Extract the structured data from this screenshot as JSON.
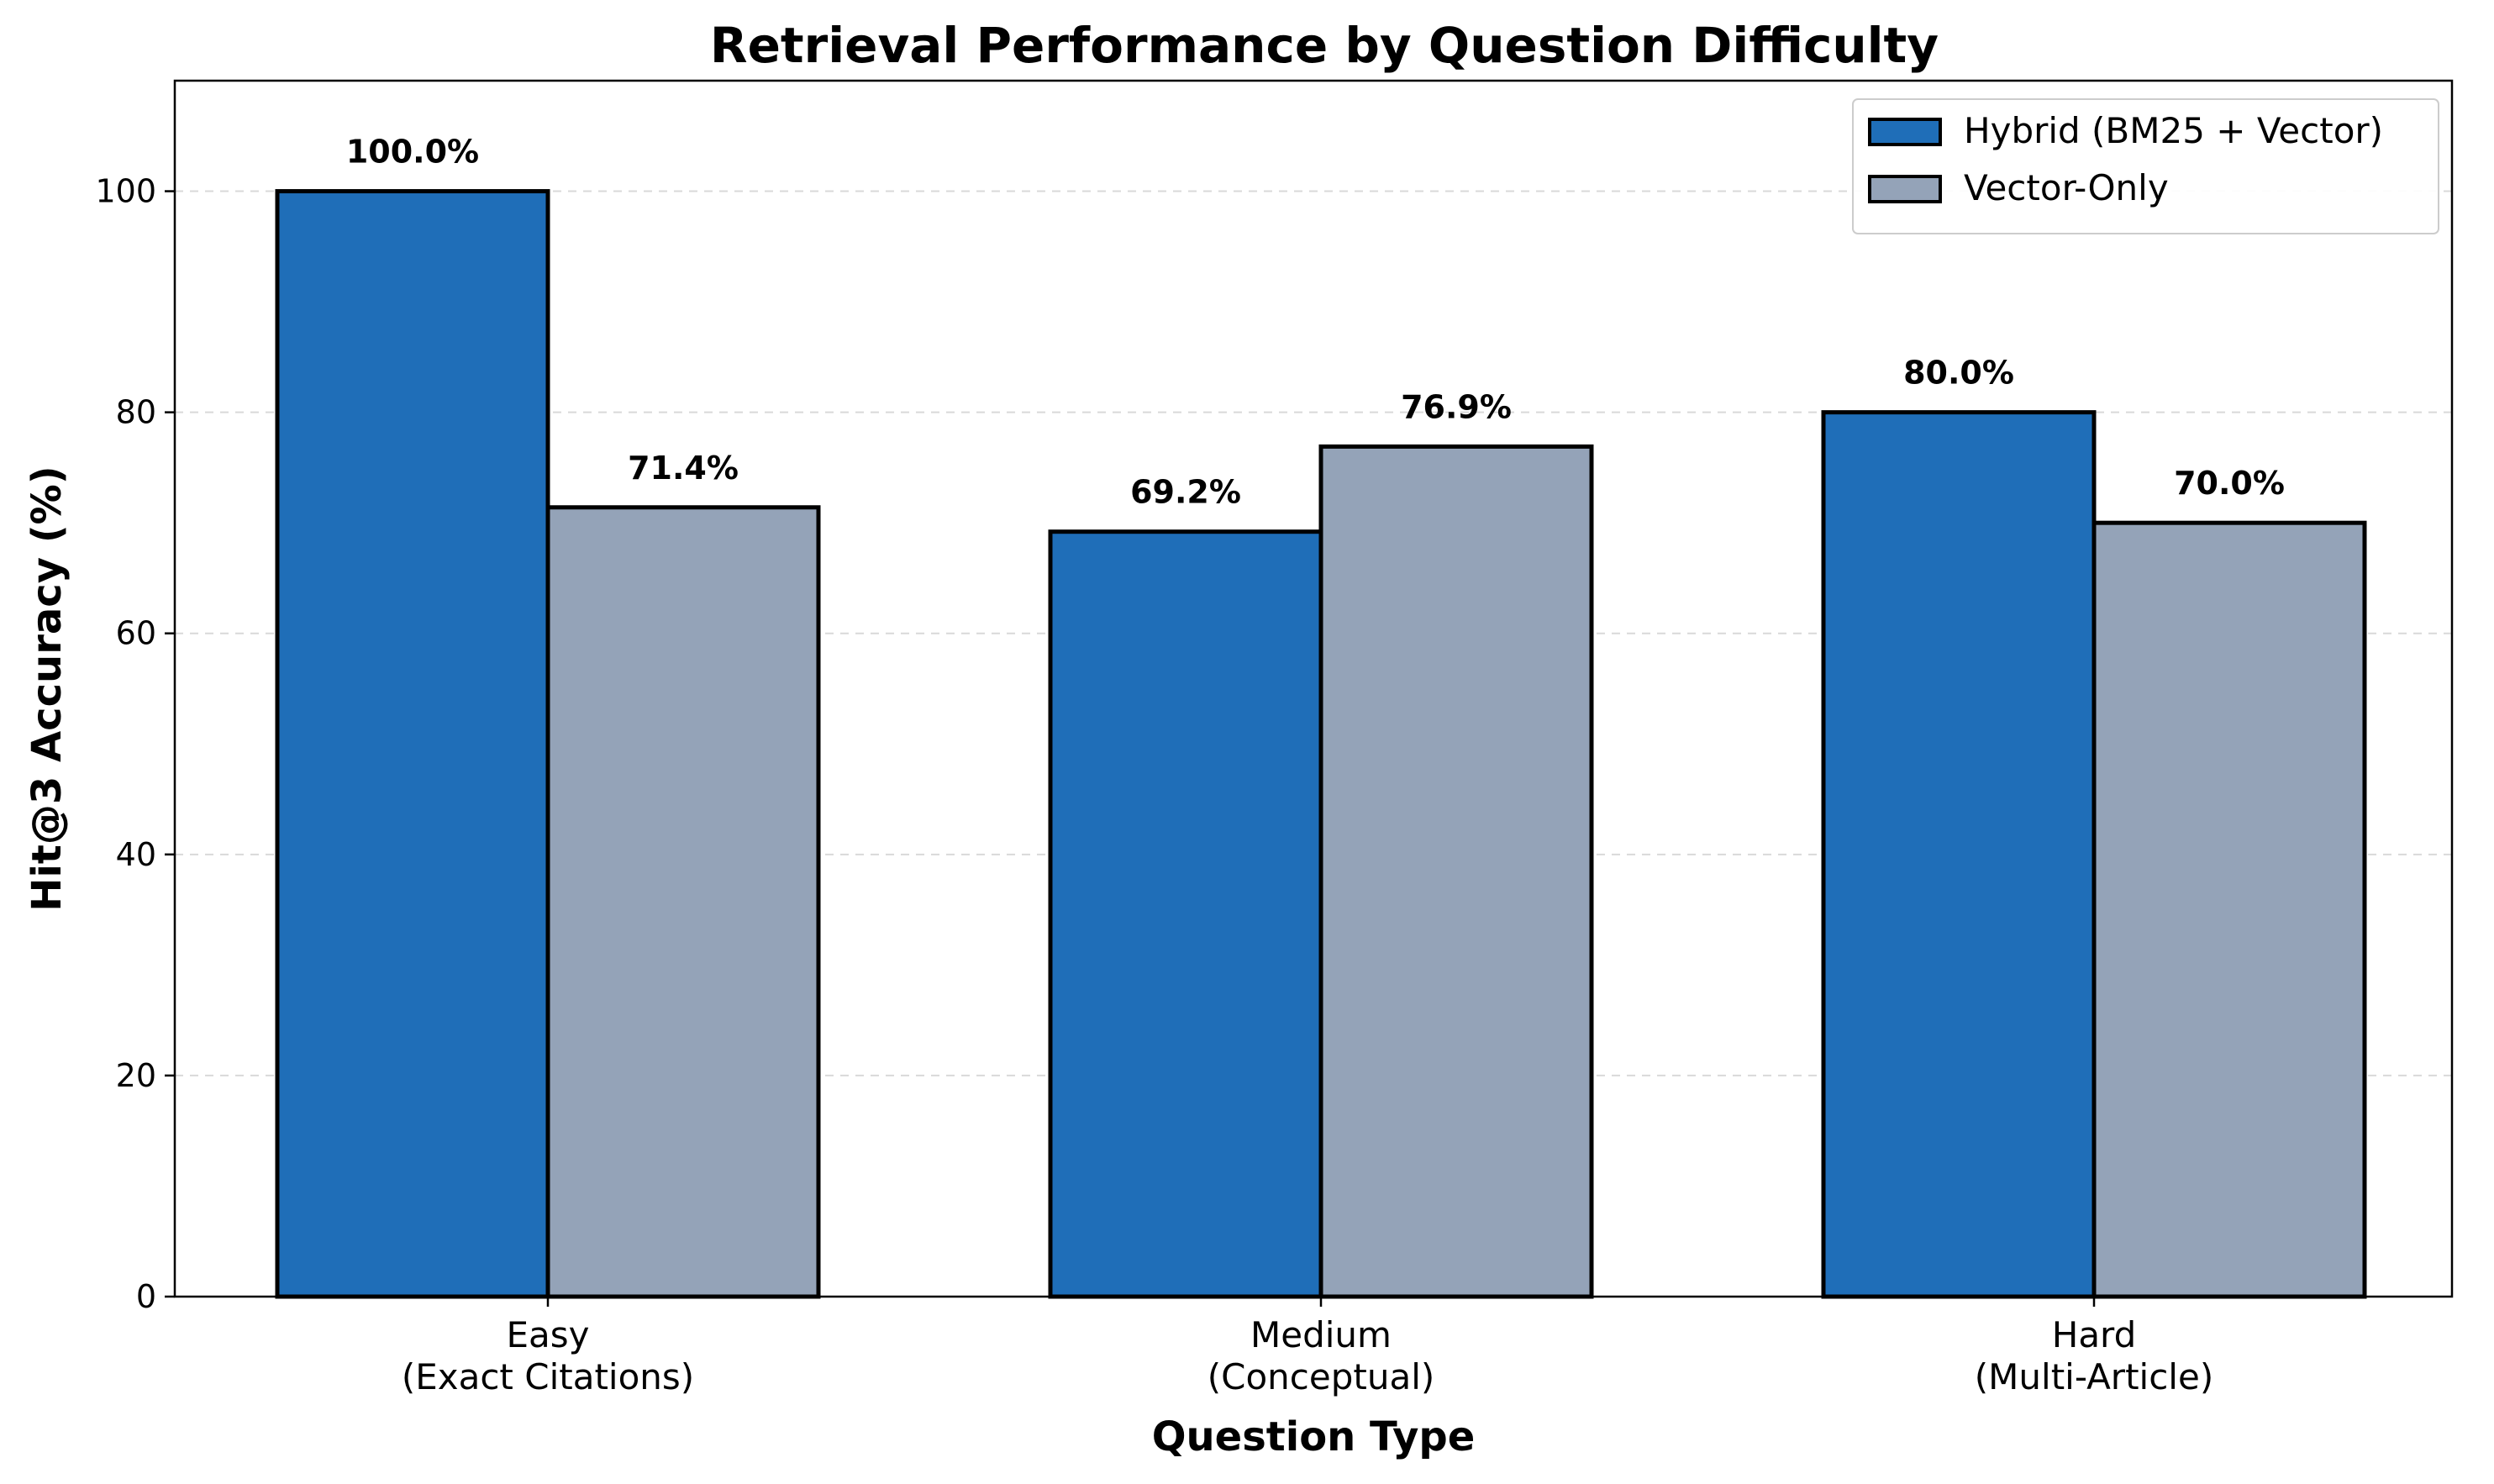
{
  "chart_data": {
    "type": "bar",
    "title": "Retrieval Performance by Question Difficulty",
    "xlabel": "Question Type",
    "ylabel": "Hit@3 Accuracy (%)",
    "categories": [
      [
        "Easy",
        "(Exact Citations)"
      ],
      [
        "Medium",
        "(Conceptual)"
      ],
      [
        "Hard",
        "(Multi-Article)"
      ]
    ],
    "series": [
      {
        "name": "Hybrid (BM25 + Vector)",
        "color": "#1f6eb8",
        "values": [
          100.0,
          69.2,
          80.0
        ],
        "labels": [
          "100.0%",
          "69.2%",
          "80.0%"
        ]
      },
      {
        "name": "Vector-Only",
        "color": "#94a3b8",
        "values": [
          71.4,
          76.9,
          70.0
        ],
        "labels": [
          "71.4%",
          "76.9%",
          "70.0%"
        ]
      }
    ],
    "ylim": [
      0,
      110
    ],
    "yticks": [
      0,
      20,
      40,
      60,
      80,
      100
    ],
    "grid": "y-dashed",
    "legend_position": "top-right"
  }
}
